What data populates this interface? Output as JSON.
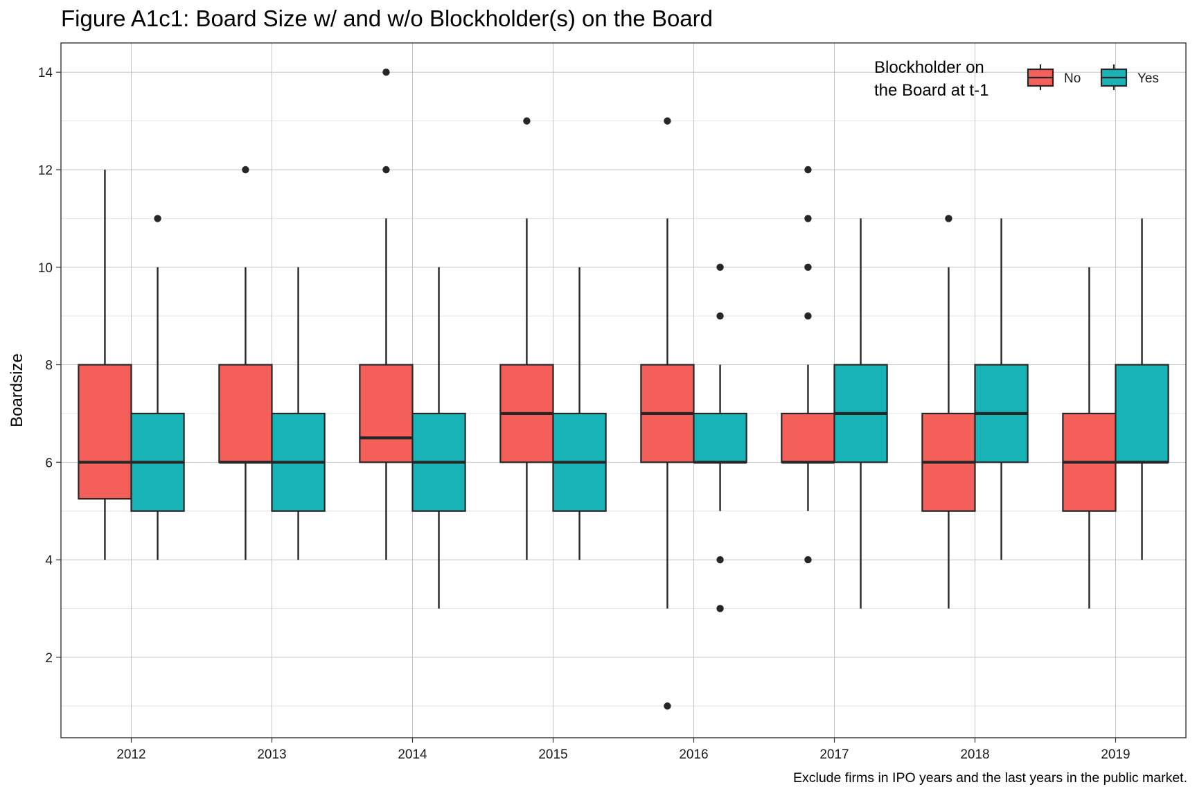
{
  "title": "Figure A1c1: Board Size w/ and w/o Blockholder(s) on the Board",
  "caption": "Exclude firms in IPO years and the last years in the public market.",
  "chart_data": {
    "type": "boxplot",
    "title": "Figure A1c1: Board Size w/ and w/o Blockholder(s) on the Board",
    "xlabel": "",
    "ylabel": "Boardsize",
    "ylim": [
      0.35,
      14.6
    ],
    "yticks": [
      2,
      4,
      6,
      8,
      10,
      12,
      14
    ],
    "grid": true,
    "categories": [
      "2012",
      "2013",
      "2014",
      "2015",
      "2016",
      "2017",
      "2018",
      "2019"
    ],
    "legend": {
      "title_lines": [
        "Blockholder on",
        "the Board at t-1"
      ],
      "placement": "top-right"
    },
    "series": [
      {
        "name": "No",
        "color": "#F45F5A",
        "boxes": [
          {
            "lower": 4,
            "q1": 5.25,
            "median": 6,
            "q3": 8,
            "upper": 12,
            "outliers": []
          },
          {
            "lower": 4,
            "q1": 6,
            "median": 6,
            "q3": 8,
            "upper": 10,
            "outliers": [
              12
            ]
          },
          {
            "lower": 4,
            "q1": 6,
            "median": 6.5,
            "q3": 8,
            "upper": 11,
            "outliers": [
              12,
              14
            ]
          },
          {
            "lower": 4,
            "q1": 6,
            "median": 7,
            "q3": 8,
            "upper": 11,
            "outliers": [
              13
            ]
          },
          {
            "lower": 3,
            "q1": 6,
            "median": 7,
            "q3": 8,
            "upper": 11,
            "outliers": [
              1,
              13
            ]
          },
          {
            "lower": 5,
            "q1": 6,
            "median": 6,
            "q3": 7,
            "upper": 8,
            "outliers": [
              4,
              9,
              10,
              11,
              12
            ]
          },
          {
            "lower": 3,
            "q1": 5,
            "median": 6,
            "q3": 7,
            "upper": 10,
            "outliers": [
              11
            ]
          },
          {
            "lower": 3,
            "q1": 5,
            "median": 6,
            "q3": 7,
            "upper": 10,
            "outliers": []
          }
        ]
      },
      {
        "name": "Yes",
        "color": "#17B3B7",
        "boxes": [
          {
            "lower": 4,
            "q1": 5,
            "median": 6,
            "q3": 7,
            "upper": 10,
            "outliers": [
              11
            ]
          },
          {
            "lower": 4,
            "q1": 5,
            "median": 6,
            "q3": 7,
            "upper": 10,
            "outliers": []
          },
          {
            "lower": 3,
            "q1": 5,
            "median": 6,
            "q3": 7,
            "upper": 10,
            "outliers": []
          },
          {
            "lower": 4,
            "q1": 5,
            "median": 6,
            "q3": 7,
            "upper": 10,
            "outliers": []
          },
          {
            "lower": 5,
            "q1": 6,
            "median": 6,
            "q3": 7,
            "upper": 8,
            "outliers": [
              3,
              4,
              9,
              10
            ]
          },
          {
            "lower": 3,
            "q1": 6,
            "median": 7,
            "q3": 8,
            "upper": 11,
            "outliers": []
          },
          {
            "lower": 4,
            "q1": 6,
            "median": 7,
            "q3": 8,
            "upper": 11,
            "outliers": []
          },
          {
            "lower": 4,
            "q1": 6,
            "median": 6,
            "q3": 8,
            "upper": 11,
            "outliers": []
          }
        ]
      }
    ]
  }
}
